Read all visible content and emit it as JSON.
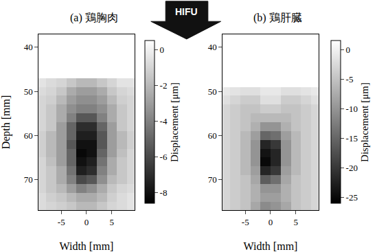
{
  "chart_data": [
    {
      "type": "heatmap",
      "title": "(a) 鶏胸肉",
      "xlabel": "Width [mm]",
      "ylabel": "Depth [mm]",
      "x": [
        -9,
        -7,
        -5,
        -3,
        -1,
        1,
        3,
        5,
        7,
        9
      ],
      "y": [
        38,
        40,
        42,
        44,
        46,
        48,
        50,
        52,
        54,
        56,
        58,
        60,
        62,
        64,
        66,
        68,
        70,
        72,
        74,
        76
      ],
      "z": [
        [
          null,
          null,
          null,
          null,
          null,
          null,
          null,
          null,
          null,
          null
        ],
        [
          null,
          null,
          null,
          null,
          null,
          null,
          null,
          null,
          null,
          null
        ],
        [
          null,
          null,
          null,
          null,
          null,
          null,
          null,
          null,
          null,
          null
        ],
        [
          null,
          null,
          null,
          null,
          null,
          null,
          null,
          null,
          null,
          null
        ],
        [
          null,
          null,
          null,
          null,
          null,
          null,
          null,
          null,
          null,
          null
        ],
        [
          -0.5,
          -0.8,
          -1,
          -1.5,
          -2,
          -2,
          -1.5,
          -1,
          -0.5,
          -0.5
        ],
        [
          -0.8,
          -1,
          -1.5,
          -2.5,
          -3,
          -3,
          -2.5,
          -1.5,
          -1,
          -0.8
        ],
        [
          -1,
          -1.2,
          -2,
          -3,
          -3.5,
          -3.5,
          -3,
          -2,
          -1.2,
          -1
        ],
        [
          -1,
          -1.5,
          -2.5,
          -3.5,
          -4,
          -4,
          -3.5,
          -2.5,
          -1.5,
          -1
        ],
        [
          -1,
          -1.5,
          -2.5,
          -4,
          -5.5,
          -5.5,
          -4,
          -2.5,
          -1.5,
          -1
        ],
        [
          -1,
          -1.5,
          -3,
          -5,
          -7,
          -7,
          -5,
          -3,
          -1.5,
          -1
        ],
        [
          -1.2,
          -2,
          -3,
          -5,
          -7.5,
          -7.5,
          -5.5,
          -3,
          -2,
          -1.2
        ],
        [
          -1.2,
          -2,
          -3,
          -5.5,
          -8,
          -8,
          -5.5,
          -3,
          -2,
          -1.2
        ],
        [
          -1.2,
          -2,
          -3,
          -5,
          -8.3,
          -8,
          -5,
          -3,
          -1.8,
          -1
        ],
        [
          -1,
          -1.8,
          -3,
          -5,
          -8,
          -7.5,
          -4.5,
          -2.5,
          -1.5,
          -1
        ],
        [
          -1,
          -1.5,
          -2.5,
          -4.5,
          -7.5,
          -7,
          -4,
          -2.5,
          -1.5,
          -1
        ],
        [
          -1,
          -1.5,
          -2.5,
          -4,
          -6,
          -5.5,
          -3.5,
          -2,
          -1.5,
          -1
        ],
        [
          -1,
          -1.5,
          -2,
          -3,
          -4,
          -3.5,
          -2.5,
          -1.5,
          -1,
          -0.8
        ],
        [
          -0.8,
          -1.2,
          -1.5,
          -2,
          -2.5,
          -2.5,
          -2,
          -1.2,
          -0.8,
          -0.5
        ],
        [
          -0.8,
          -1,
          -1.2,
          -1.5,
          -2,
          -2,
          -1.5,
          -1,
          -0.8,
          -0.5
        ]
      ],
      "xlim": [
        -9.5,
        9.5
      ],
      "ylim": [
        77,
        37
      ],
      "xticks": [
        -5,
        0,
        5
      ],
      "yticks": [
        40,
        50,
        60,
        70
      ],
      "zlim": [
        -8.6,
        0.5
      ],
      "zticks": [
        0,
        -2,
        -4,
        -6,
        -8
      ],
      "zlabel": "Displacement [μm]",
      "grid": false,
      "annotations": [
        {
          "text": "HIFU"
        }
      ]
    },
    {
      "type": "heatmap",
      "title": "(b) 鶏肝臓",
      "xlabel": "Width [mm]",
      "x": [
        -9,
        -7,
        -5,
        -3,
        -1,
        1,
        3,
        5,
        7,
        9
      ],
      "y": [
        38,
        40,
        42,
        44,
        46,
        48,
        50,
        52,
        54,
        56,
        58,
        60,
        62,
        64,
        66,
        68,
        70,
        72,
        74,
        76
      ],
      "z": [
        [
          null,
          null,
          null,
          null,
          null,
          null,
          null,
          null,
          null,
          null
        ],
        [
          null,
          null,
          null,
          null,
          null,
          null,
          null,
          null,
          null,
          null
        ],
        [
          null,
          null,
          null,
          null,
          null,
          null,
          null,
          null,
          null,
          null
        ],
        [
          null,
          null,
          null,
          null,
          null,
          null,
          null,
          null,
          null,
          null
        ],
        [
          null,
          null,
          null,
          null,
          null,
          null,
          null,
          null,
          null,
          null
        ],
        [
          null,
          null,
          null,
          null,
          null,
          null,
          null,
          null,
          null,
          null
        ],
        [
          -1,
          -1.5,
          -2,
          -2,
          -1,
          -1,
          -2,
          -2,
          -1.5,
          -1
        ],
        [
          -2,
          -3,
          -4,
          -4,
          -2,
          -2,
          -4,
          -4,
          -3,
          -2
        ],
        [
          -3,
          -4,
          -5,
          -5,
          -4,
          -4,
          -5,
          -5,
          -4,
          -3
        ],
        [
          -3,
          -4,
          -5,
          -6,
          -6,
          -6,
          -6,
          -5,
          -4,
          -3
        ],
        [
          -3,
          -4,
          -5,
          -7,
          -10,
          -10,
          -7,
          -5,
          -4,
          -3
        ],
        [
          -3,
          -4,
          -6,
          -9,
          -15,
          -14,
          -9,
          -6,
          -4,
          -3
        ],
        [
          -3,
          -4,
          -6,
          -10,
          -22,
          -20,
          -10,
          -6,
          -4,
          -3
        ],
        [
          -3,
          -4,
          -6,
          -10,
          -24,
          -22,
          -10,
          -6,
          -4,
          -3
        ],
        [
          -3,
          -4,
          -6,
          -10,
          -25,
          -22,
          -10,
          -6,
          -4,
          -3
        ],
        [
          -3,
          -4,
          -6,
          -9,
          -22,
          -20,
          -9,
          -6,
          -4,
          -3
        ],
        [
          -3,
          -4,
          -5,
          -8,
          -16,
          -14,
          -8,
          -5,
          -4,
          -3
        ],
        [
          -3,
          -4,
          -5,
          -7,
          -10,
          -10,
          -7,
          -5,
          -4,
          -3
        ],
        [
          -3,
          -4,
          -5,
          -7,
          -9,
          -9,
          -7,
          -5,
          -4,
          -3
        ],
        [
          -3,
          -4,
          -5,
          -8,
          -11,
          -10,
          -8,
          -5,
          -4,
          -3
        ]
      ],
      "xlim": [
        -9.5,
        9.5
      ],
      "ylim": [
        77,
        37
      ],
      "xticks": [
        -5,
        0,
        5
      ],
      "yticks": [
        40,
        50,
        60,
        70
      ],
      "zlim": [
        -26,
        1.5
      ],
      "zticks": [
        0,
        -5,
        -10,
        -15,
        -20,
        -25
      ],
      "zlabel": "Displacement [μm]",
      "grid": false
    }
  ]
}
